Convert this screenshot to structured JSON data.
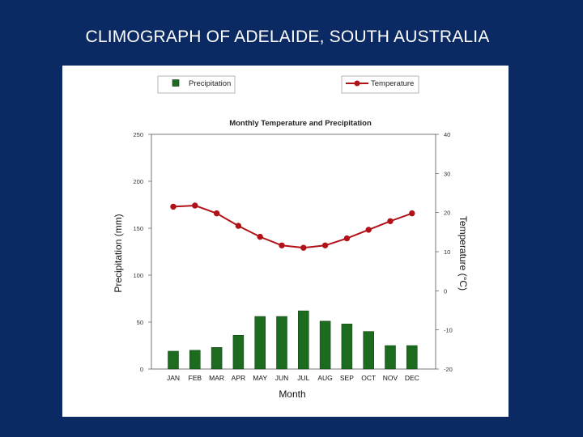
{
  "slide": {
    "title": "CLIMOGRAPH OF ADELAIDE, SOUTH AUSTRALIA"
  },
  "colors": {
    "background": "#0b2a63",
    "precipitation": "#1c6b1f",
    "temperature": "#b01218"
  },
  "chart_data": {
    "type": "bar",
    "title": "Monthly Temperature and Precipitation",
    "xlabel": "Month",
    "ylabel": "Precipitation (mm)",
    "y2label": "Temperature (°C)",
    "categories": [
      "JAN",
      "FEB",
      "MAR",
      "APR",
      "MAY",
      "JUN",
      "JUL",
      "AUG",
      "SEP",
      "OCT",
      "NOV",
      "DEC"
    ],
    "ylim": [
      0,
      250
    ],
    "y2lim": [
      -20,
      40
    ],
    "yticks": [
      0,
      50,
      100,
      150,
      200,
      250
    ],
    "y2ticks": [
      -20,
      -10,
      0,
      10,
      20,
      30,
      40
    ],
    "legend_position": "top",
    "grid": false,
    "series": [
      {
        "name": "Precipitation",
        "type": "bar",
        "axis": "left",
        "values": [
          19,
          20,
          23,
          36,
          56,
          56,
          62,
          51,
          48,
          40,
          25,
          25
        ]
      },
      {
        "name": "Temperature",
        "type": "line",
        "axis": "right",
        "values": [
          21.5,
          21.8,
          19.8,
          16.6,
          13.8,
          11.6,
          11.0,
          11.6,
          13.4,
          15.6,
          17.8,
          19.8
        ]
      }
    ]
  }
}
